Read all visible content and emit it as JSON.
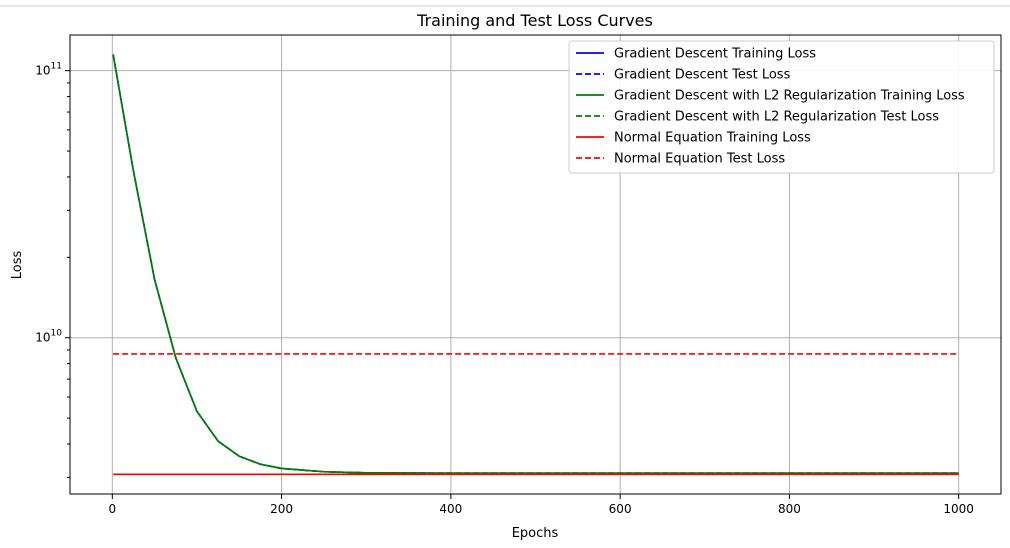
{
  "chart_data": {
    "type": "line",
    "title": "Training and Test Loss Curves",
    "xlabel": "Epochs",
    "ylabel": "Loss",
    "xlim": [
      -50,
      1050
    ],
    "ylim": [
      2600000000,
      136000000000
    ],
    "yscale": "log",
    "grid": true,
    "legend_placement": "top-right",
    "x_ticks": [
      0,
      200,
      400,
      600,
      800,
      1000
    ],
    "x_tick_labels": [
      "0",
      "200",
      "400",
      "600",
      "800",
      "1000"
    ],
    "y_ticks": [
      10000000000,
      100000000000
    ],
    "y_tick_labels": [
      {
        "base": "10",
        "exponent": "10"
      },
      {
        "base": "10",
        "exponent": "11"
      }
    ],
    "series": [
      {
        "name": "Gradient Descent Training Loss",
        "color": "#0000ff",
        "style": "solid",
        "x": [
          1,
          25,
          50,
          75,
          100,
          125,
          150,
          175,
          200,
          250,
          300,
          400,
          500,
          600,
          700,
          800,
          900,
          1000
        ],
        "y": [
          115000000000,
          42000000000,
          16500000000,
          8400000000,
          5300000000,
          4100000000,
          3600000000,
          3360000000,
          3240000000,
          3150000000,
          3120000000,
          3110000000,
          3110000000,
          3110000000,
          3110000000,
          3110000000,
          3110000000,
          3110000000
        ]
      },
      {
        "name": "Gradient Descent Test Loss",
        "color": "#0000ff",
        "style": "dashed",
        "x": [
          1,
          25,
          50,
          75,
          100,
          125,
          150,
          175,
          200,
          250,
          300,
          400,
          500,
          600,
          700,
          800,
          900,
          1000
        ],
        "y": [
          115000000000,
          42000000000,
          16500000000,
          8400000000,
          5300000000,
          4100000000,
          3600000000,
          3360000000,
          3240000000,
          3150000000,
          3120000000,
          3110000000,
          3110000000,
          3110000000,
          3110000000,
          3110000000,
          3110000000,
          3110000000
        ]
      },
      {
        "name": "Gradient Descent with L2 Regularization Training Loss",
        "color": "#008000",
        "style": "solid",
        "x": [
          1,
          25,
          50,
          75,
          100,
          125,
          150,
          175,
          200,
          250,
          300,
          400,
          500,
          600,
          700,
          800,
          900,
          1000
        ],
        "y": [
          115000000000,
          42000000000,
          16500000000,
          8400000000,
          5300000000,
          4100000000,
          3600000000,
          3360000000,
          3240000000,
          3150000000,
          3120000000,
          3110000000,
          3110000000,
          3110000000,
          3110000000,
          3110000000,
          3110000000,
          3110000000
        ]
      },
      {
        "name": "Gradient Descent with L2 Regularization Test Loss",
        "color": "#008000",
        "style": "dashed",
        "x": [
          1,
          25,
          50,
          75,
          100,
          125,
          150,
          175,
          200,
          250,
          300,
          400,
          500,
          600,
          700,
          800,
          900,
          1000
        ],
        "y": [
          115000000000,
          42000000000,
          16500000000,
          8400000000,
          5300000000,
          4100000000,
          3600000000,
          3360000000,
          3240000000,
          3150000000,
          3120000000,
          3110000000,
          3110000000,
          3110000000,
          3110000000,
          3110000000,
          3110000000,
          3110000000
        ]
      },
      {
        "name": "Normal Equation Training Loss",
        "color": "#ff0000",
        "style": "solid",
        "x": [
          1,
          1000
        ],
        "y": [
          3080000000,
          3080000000
        ]
      },
      {
        "name": "Normal Equation Test Loss",
        "color": "#ff0000",
        "style": "dashed",
        "x": [
          1,
          1000
        ],
        "y": [
          8700000000,
          8700000000
        ]
      }
    ]
  }
}
